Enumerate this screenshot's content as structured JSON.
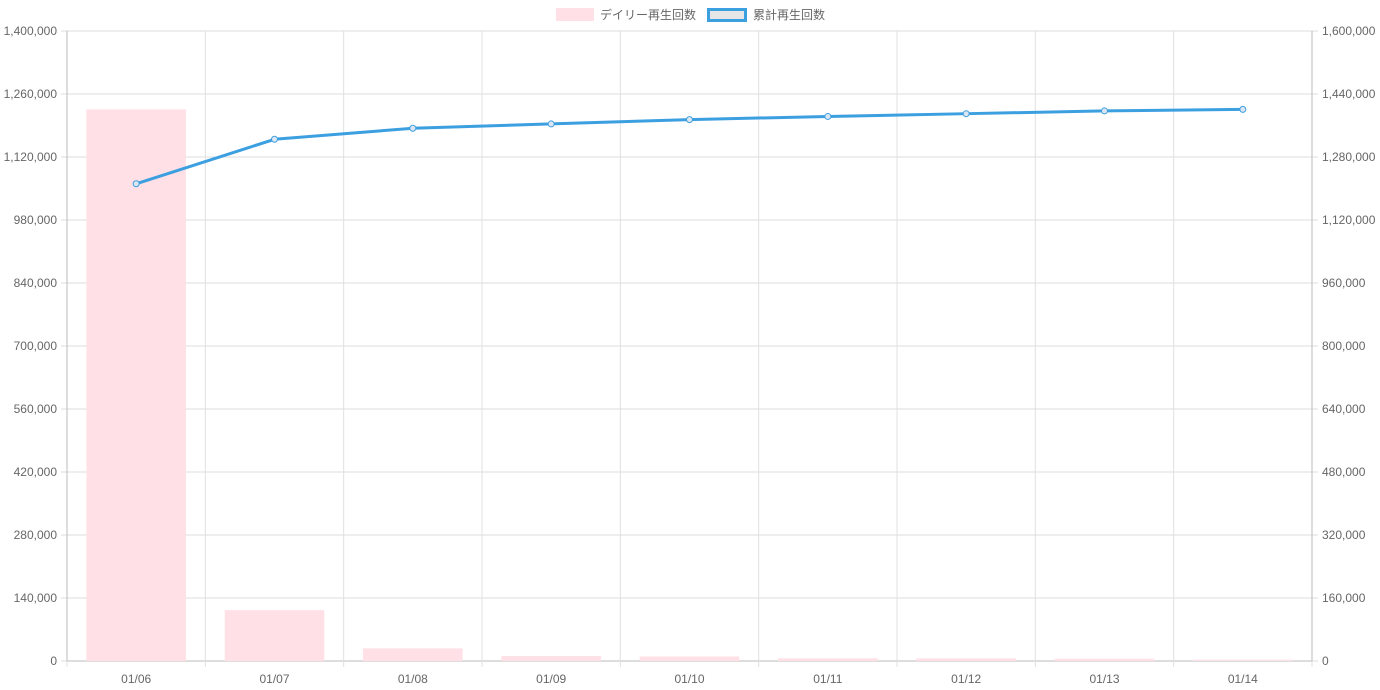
{
  "chart_data": {
    "type": "bar",
    "categories": [
      "01/06",
      "01/07",
      "01/08",
      "01/09",
      "01/10",
      "01/11",
      "01/12",
      "01/13",
      "01/14"
    ],
    "series": [
      {
        "name": "デイリー再生回数",
        "type": "bar",
        "axis": "left",
        "color": "#ffe0e6",
        "values": [
          1226000,
          113000,
          28000,
          11000,
          10000,
          6000,
          6000,
          5000,
          3000
        ]
      },
      {
        "name": "累計再生回数",
        "type": "line",
        "axis": "right",
        "color": "#3c9fe0",
        "values": [
          1212000,
          1325000,
          1353000,
          1364000,
          1375000,
          1383000,
          1390000,
          1397000,
          1401000
        ]
      }
    ],
    "y_left": {
      "range": [
        0,
        1400000
      ],
      "ticks": [
        "0",
        "140,000",
        "280,000",
        "420,000",
        "560,000",
        "700,000",
        "840,000",
        "980,000",
        "1,120,000",
        "1,260,000",
        "1,400,000"
      ]
    },
    "y_right": {
      "range": [
        0,
        1600000
      ],
      "ticks": [
        "0",
        "160,000",
        "320,000",
        "480,000",
        "640,000",
        "800,000",
        "960,000",
        "1,120,000",
        "1,280,000",
        "1,440,000",
        "1,600,000"
      ]
    },
    "grid": true,
    "legend_position": "top"
  }
}
